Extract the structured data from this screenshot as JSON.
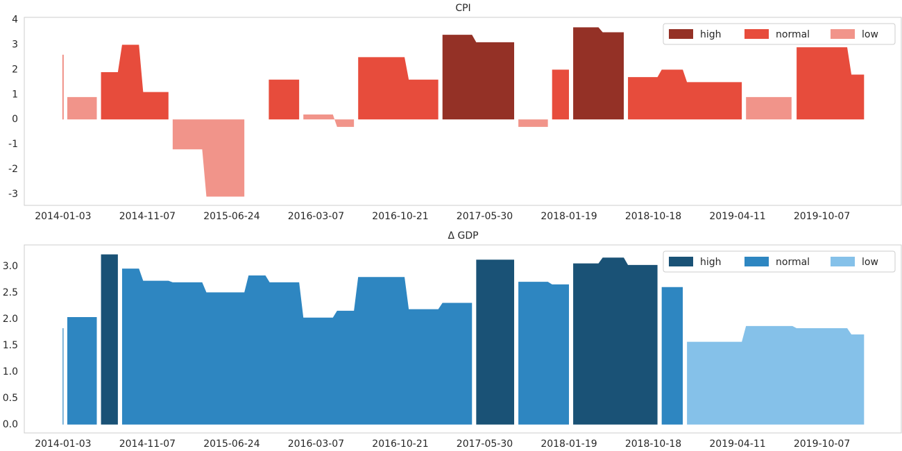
{
  "chart_data": [
    {
      "type": "area",
      "title": "CPI",
      "xlim": [
        -4.6,
        99.5
      ],
      "xticks": [
        {
          "value": 0,
          "label": "2014-01-03"
        },
        {
          "value": 10,
          "label": "2014-11-07"
        },
        {
          "value": 20,
          "label": "2015-06-24"
        },
        {
          "value": 30,
          "label": "2016-03-07"
        },
        {
          "value": 40,
          "label": "2016-10-21"
        },
        {
          "value": 50,
          "label": "2017-05-30"
        },
        {
          "value": 60,
          "label": "2018-01-19"
        },
        {
          "value": 70,
          "label": "2018-10-18"
        },
        {
          "value": 80,
          "label": "2019-04-11"
        },
        {
          "value": 90,
          "label": "2019-10-07"
        }
      ],
      "ylim": [
        -3.45,
        4.1
      ],
      "yticks": [
        -3,
        -2,
        -1,
        0,
        1,
        2,
        3,
        4
      ],
      "legend": "upper right",
      "series": [
        {
          "name": "high",
          "color": "#943126",
          "x": [
            45.0,
            48.5,
            49.0,
            53.5,
            null,
            60.5,
            63.5,
            64.0,
            66.5
          ],
          "values": [
            3.4,
            3.4,
            3.1,
            3.1,
            null,
            3.7,
            3.7,
            3.5,
            3.5
          ]
        },
        {
          "name": "normal",
          "color": "#e74c3c",
          "x": [
            0,
            null,
            4.5,
            6.5,
            7.0,
            9.0,
            9.5,
            12.5,
            null,
            24.4,
            28.0,
            null,
            35.0,
            40.5,
            41.0,
            44.5,
            null,
            58.0,
            60.0,
            null,
            67.0,
            70.5,
            71.0,
            73.5,
            74.0,
            80.5,
            null,
            87.0,
            93.0,
            93.5,
            95.0
          ],
          "values": [
            2.6,
            null,
            1.9,
            1.9,
            3.0,
            3.0,
            1.1,
            1.1,
            null,
            1.6,
            1.6,
            null,
            2.5,
            2.5,
            1.6,
            1.6,
            null,
            2.0,
            2.0,
            null,
            1.7,
            1.7,
            2.0,
            2.0,
            1.5,
            1.5,
            null,
            2.9,
            2.9,
            1.8,
            1.8
          ]
        },
        {
          "name": "low",
          "color": "#f1948a",
          "x": [
            0.5,
            4.0,
            null,
            13.0,
            16.5,
            17.0,
            21.5,
            null,
            28.5,
            32.0,
            32.5,
            34.5,
            null,
            54.0,
            57.5,
            null,
            81.0,
            86.4
          ],
          "values": [
            0.9,
            0.9,
            null,
            -1.2,
            -1.2,
            -3.1,
            -3.1,
            null,
            0.2,
            0.2,
            -0.3,
            -0.3,
            null,
            -0.3,
            -0.3,
            null,
            0.9,
            0.9
          ]
        }
      ]
    },
    {
      "type": "area",
      "title": "Δ GDP",
      "xlim": [
        -4.6,
        99.5
      ],
      "xticks": [
        {
          "value": 0,
          "label": "2014-01-03"
        },
        {
          "value": 10,
          "label": "2014-11-07"
        },
        {
          "value": 20,
          "label": "2015-06-24"
        },
        {
          "value": 30,
          "label": "2016-03-07"
        },
        {
          "value": 40,
          "label": "2016-10-21"
        },
        {
          "value": 50,
          "label": "2017-05-30"
        },
        {
          "value": 60,
          "label": "2018-01-19"
        },
        {
          "value": 70,
          "label": "2018-10-18"
        },
        {
          "value": 80,
          "label": "2019-04-11"
        },
        {
          "value": 90,
          "label": "2019-10-07"
        }
      ],
      "ylim": [
        -0.16,
        3.41
      ],
      "yticks": [
        {
          "value": 0,
          "label": "0.0"
        },
        0.5,
        {
          "value": 1,
          "label": "1.0"
        },
        1.5,
        {
          "value": 2,
          "label": "2.0"
        },
        2.5,
        {
          "value": 3,
          "label": "3.0"
        }
      ],
      "legend": "upper right",
      "series": [
        {
          "name": "high",
          "color": "#1a5276",
          "x": [
            4.5,
            6.5,
            null,
            49.0,
            53.5,
            null,
            60.5,
            63.5,
            64.0,
            66.5,
            67.0,
            70.5
          ],
          "values": [
            3.23,
            3.23,
            null,
            3.13,
            3.13,
            null,
            3.06,
            3.06,
            3.17,
            3.17,
            3.03,
            3.03
          ]
        },
        {
          "name": "normal",
          "color": "#2e86c1",
          "x": [
            0,
            null,
            0.5,
            4.0,
            null,
            7.0,
            9.0,
            9.5,
            12.5,
            13.0,
            16.5,
            17.0,
            21.5,
            22.0,
            24.0,
            24.5,
            28.0,
            28.5,
            32.0,
            32.5,
            34.5,
            35.0,
            40.5,
            41.0,
            44.5,
            45.0,
            48.5,
            null,
            54.0,
            57.5,
            58.0,
            60.0,
            null,
            71.0,
            73.5
          ],
          "values": [
            1.83,
            null,
            2.04,
            2.04,
            null,
            2.96,
            2.96,
            2.73,
            2.73,
            2.7,
            2.7,
            2.51,
            2.51,
            2.83,
            2.83,
            2.7,
            2.7,
            2.03,
            2.03,
            2.16,
            2.16,
            2.8,
            2.8,
            2.19,
            2.19,
            2.31,
            2.31,
            null,
            2.71,
            2.71,
            2.66,
            2.66,
            null,
            2.61,
            2.61
          ]
        },
        {
          "name": "low",
          "color": "#85c1e9",
          "x": [
            74.0,
            80.5,
            81.0,
            86.5,
            87.0,
            93.0,
            93.5,
            95.0
          ],
          "values": [
            1.57,
            1.57,
            1.87,
            1.87,
            1.83,
            1.83,
            1.71,
            1.71
          ]
        }
      ]
    }
  ]
}
